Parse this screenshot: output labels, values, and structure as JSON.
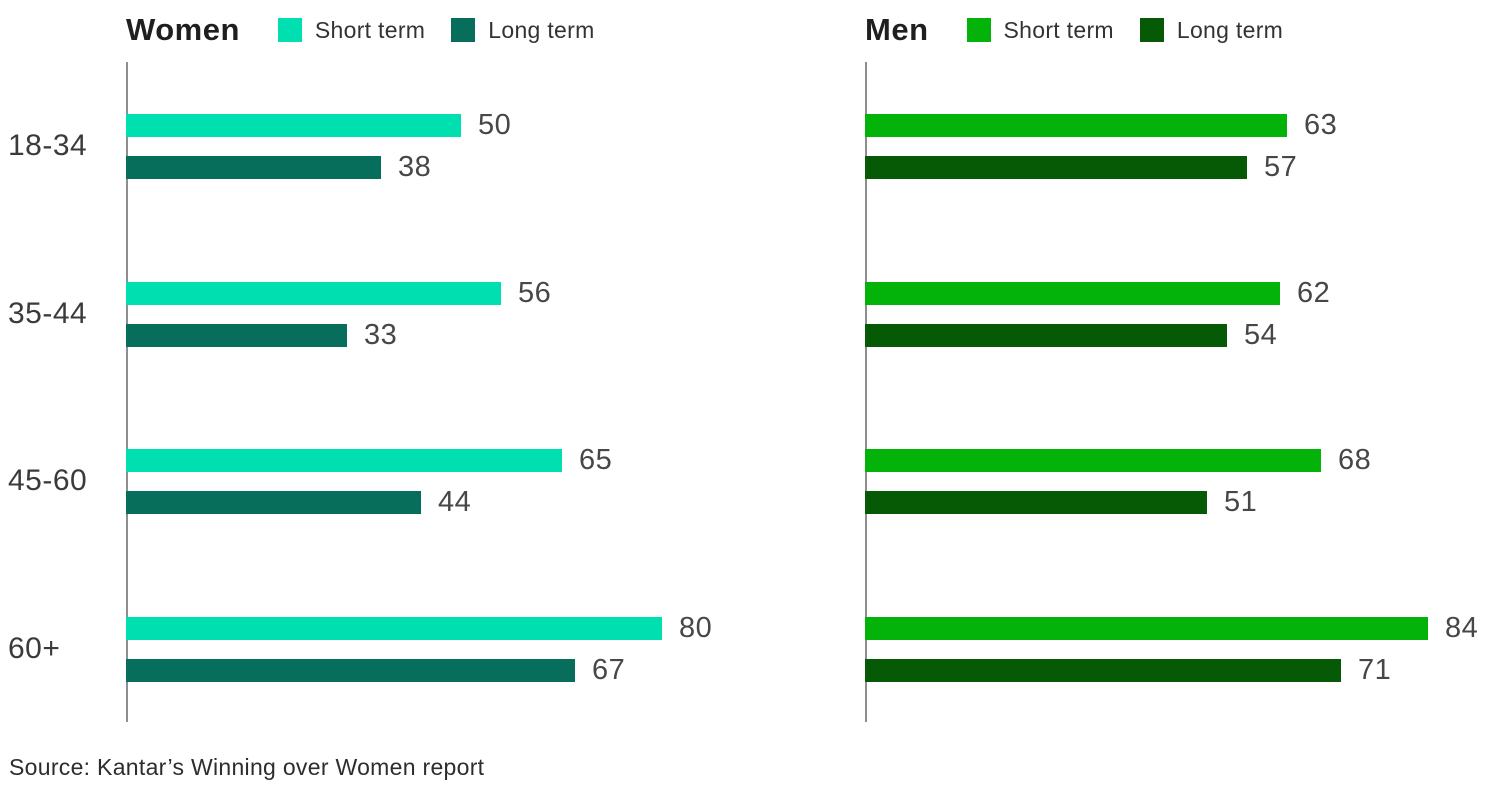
{
  "chart_data": [
    {
      "type": "bar",
      "orientation": "horizontal",
      "title": "Women",
      "categories": [
        "18-34",
        "35-44",
        "45-60",
        "60+"
      ],
      "series": [
        {
          "name": "Short term",
          "color": "#00DFB0",
          "values": [
            50,
            56,
            65,
            80
          ]
        },
        {
          "name": "Long term",
          "color": "#076E5B",
          "values": [
            38,
            33,
            44,
            67
          ]
        }
      ],
      "xlim": [
        0,
        100
      ],
      "grid": false,
      "legend_position": "top",
      "show_category_labels": true,
      "axis_color": "#8e8e8e"
    },
    {
      "type": "bar",
      "orientation": "horizontal",
      "title": "Men",
      "categories": [
        "18-34",
        "35-44",
        "45-60",
        "60+"
      ],
      "series": [
        {
          "name": "Short term",
          "color": "#03B309",
          "values": [
            63,
            62,
            68,
            84
          ]
        },
        {
          "name": "Long term",
          "color": "#065A06",
          "values": [
            57,
            54,
            51,
            71
          ]
        }
      ],
      "xlim": [
        0,
        100
      ],
      "grid": false,
      "legend_position": "top",
      "show_category_labels": false,
      "axis_color": "#8e8e8e"
    }
  ],
  "source": "Source: Kantar’s Winning over Women report"
}
